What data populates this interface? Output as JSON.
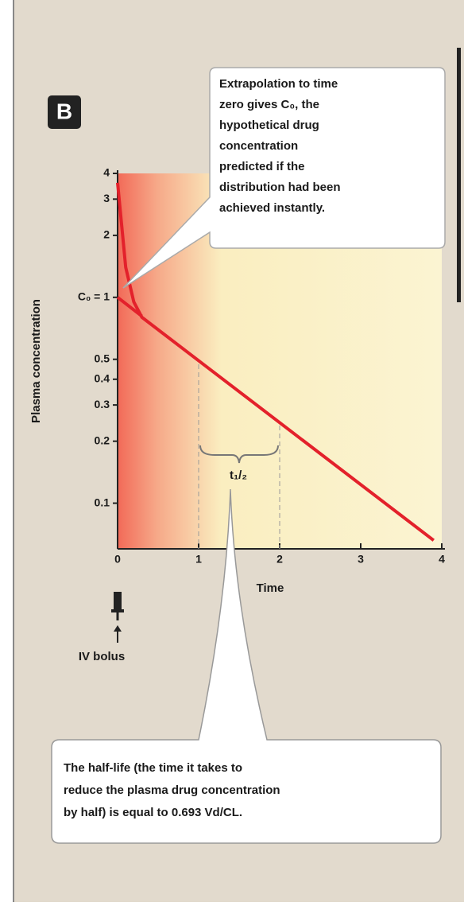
{
  "chart_data": {
    "type": "line",
    "panel_label": "B",
    "y_label": "Plasma concentration",
    "x_label": "Time",
    "log_y": true,
    "xlim": [
      0,
      4
    ],
    "ylim": [
      0.06,
      4
    ],
    "xticks": [
      0,
      1,
      2,
      3,
      4
    ],
    "yticks": [
      0.1,
      0.2,
      0.3,
      0.4,
      0.5,
      {
        "value": 1,
        "label": "C₀ = 1"
      },
      2,
      3,
      4
    ],
    "series": [
      {
        "color": "#e3212b",
        "x": [
          0,
          0.1,
          0.2,
          0.3,
          3.9
        ],
        "values": [
          3.6,
          1.4,
          0.95,
          0.8,
          0.066
        ]
      },
      {
        "color": "#e3212b",
        "x": [
          0,
          0.3
        ],
        "values": [
          1,
          0.81
        ]
      }
    ],
    "annotations": {
      "extrapolation": [
        "Extrapolation to time",
        "zero gives C₀, the",
        "hypothetical drug",
        "concentration",
        "predicted if the",
        "distribution had been",
        "achieved instantly."
      ],
      "half_life_symbol": "t₁/₂",
      "dose": "IV bolus",
      "half_life_note": [
        "The half-life (the time it takes to",
        "reduce the plasma drug concentration",
        "by half) is equal to 0.693 Vd/CL."
      ]
    }
  }
}
